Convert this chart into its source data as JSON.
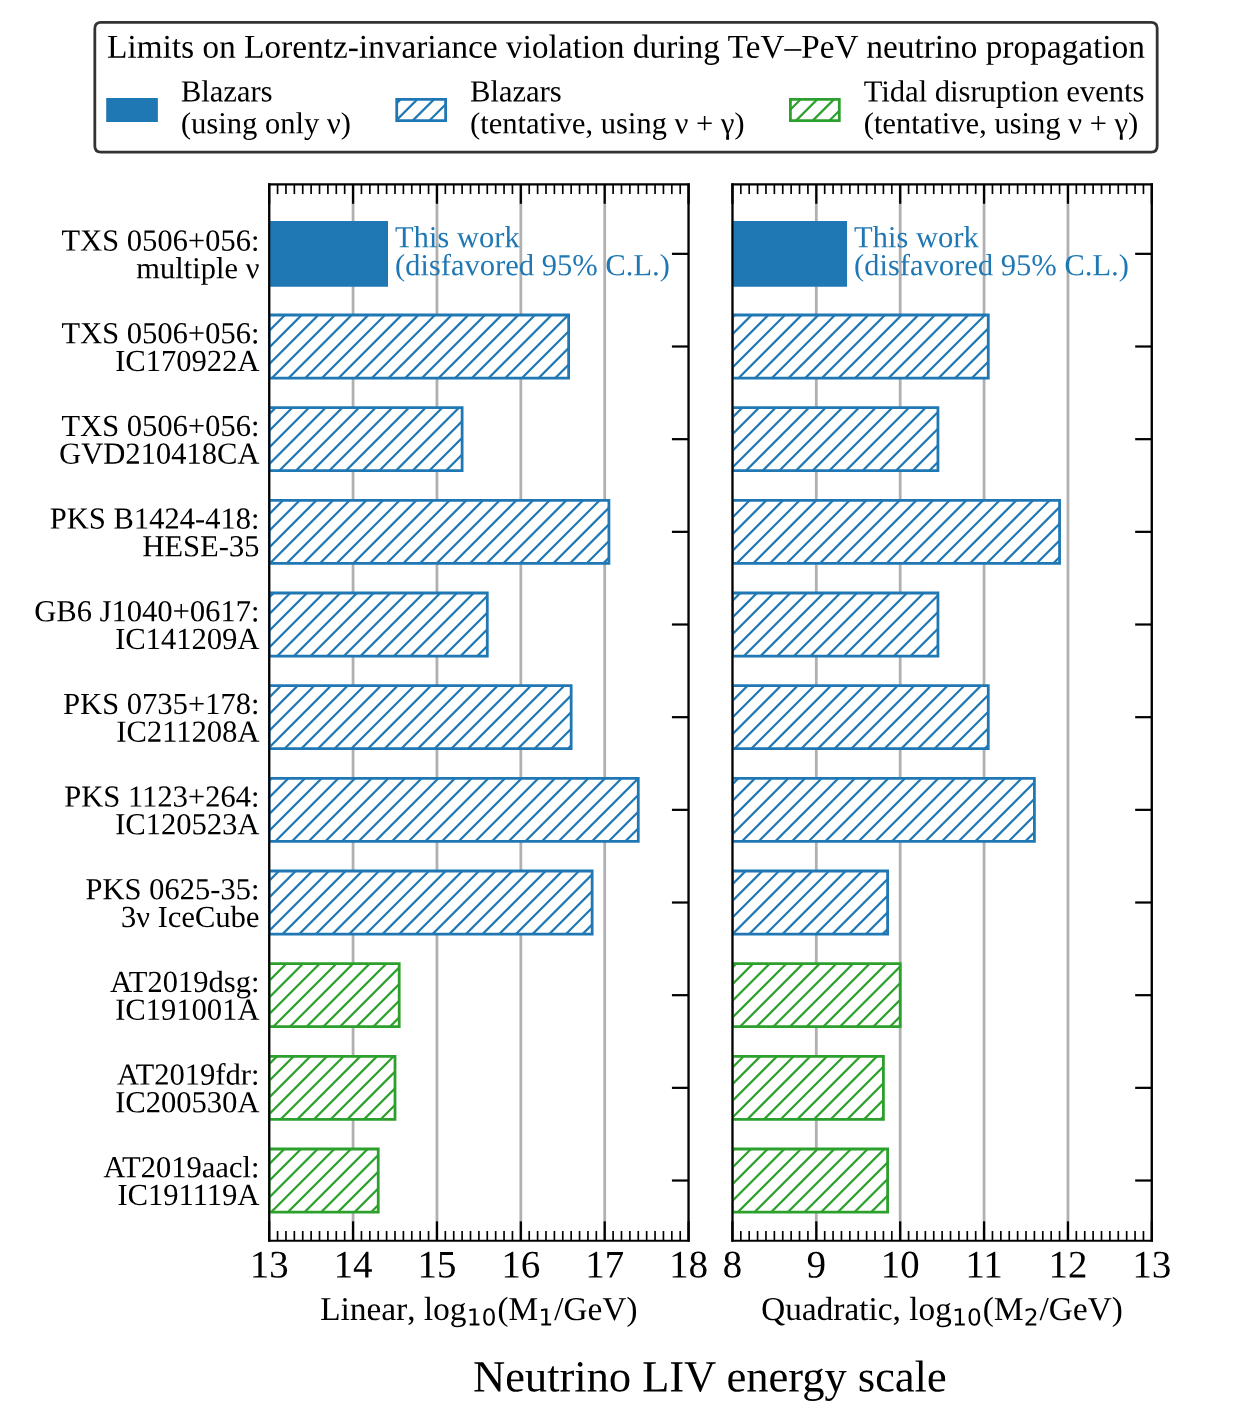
{
  "chart_data": [
    {
      "type": "bar",
      "orientation": "horizontal",
      "xlabel": "Linear, log$_{10}$(M$_{1}$/GeV)",
      "legend": "top",
      "legend_title": "Limits on Lorentz-invariance violation during TeV–PeV neutrino propagation",
      "categories": [
        "TXS 0506+056:\nmultiple ν",
        "TXS 0506+056:\nIC170922A",
        "TXS 0506+056:\nGVD210418CA",
        "PKS B1424-418:\nHESE-35",
        "GB6 J1040+0617:\nIC141209A",
        "PKS 0735+178:\nIC211208A",
        "PKS 1123+264:\nIC120523A",
        "PKS 0625-35:\n3ν IceCube",
        "AT2019dsg:\nIC191001A",
        "AT2019fdr:\nIC200530A",
        "AT2019aacl:\nIC191119A"
      ],
      "series": [
        {
          "name": "Blazars\n(using only ν)",
          "color": "#1f77b4",
          "values": [
            14.4,
            null,
            null,
            null,
            null,
            null,
            null,
            null,
            null,
            null,
            null
          ]
        },
        {
          "name": "Blazars\n(tentative, using ν + γ)",
          "color": "#1f77b4",
          "values": [
            null,
            16.57,
            15.3,
            17.05,
            15.6,
            16.6,
            17.4,
            16.85,
            null,
            null,
            null
          ]
        },
        {
          "name": "Tidal disruption events\n(tentative, using ν + γ)",
          "color": "#2ca02c",
          "values": [
            null,
            null,
            null,
            null,
            null,
            null,
            null,
            null,
            14.55,
            14.5,
            14.3
          ]
        }
      ],
      "xlim": [
        13,
        18
      ],
      "xticks": [
        13,
        14,
        15,
        16,
        17,
        18
      ],
      "grid": "x",
      "annotations": [
        {
          "text": "This work\n(disfavored 95% C.L.)",
          "x": 14.4,
          "y": "TXS 0506+056:\nmultiple ν"
        },
        "Neutrino LIV energy scale"
      ]
    },
    {
      "type": "bar",
      "orientation": "horizontal",
      "xlabel": "Quadratic, log$_{10}$(M$_{2}$/GeV)",
      "tick_labels": "x",
      "categories": [
        null,
        null,
        null,
        null,
        null,
        null,
        null,
        null,
        null,
        null,
        null
      ],
      "series": [
        {
          "color": "#1f77b4",
          "values": [
            9.35,
            null,
            null,
            null,
            null,
            null,
            null,
            null,
            null,
            null,
            null
          ]
        },
        {
          "color": "#1f77b4",
          "values": [
            null,
            11.05,
            10.45,
            11.9,
            10.45,
            11.05,
            11.6,
            9.85,
            null,
            null,
            null
          ]
        },
        {
          "color": "#2ca02c",
          "values": [
            null,
            null,
            null,
            null,
            null,
            null,
            null,
            null,
            10.0,
            9.8,
            9.85
          ]
        }
      ],
      "xlim": [
        8,
        13
      ],
      "xticks": [
        8,
        9,
        10,
        11,
        12,
        13
      ],
      "grid": "x",
      "annotations": [
        {
          "text": "This work\n(disfavored 95% C.L.)",
          "x": 9.35
        }
      ]
    }
  ]
}
